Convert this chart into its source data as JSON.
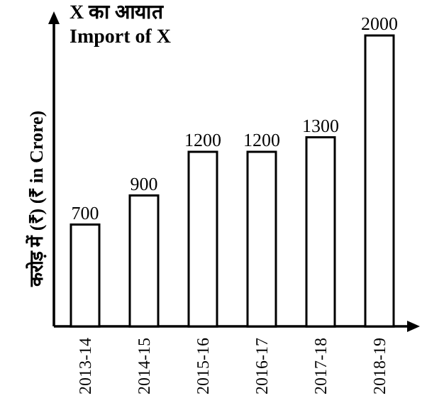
{
  "chart_data": {
    "type": "bar",
    "title": "X का आयात",
    "subtitle": "Import of X",
    "ylabel": "करोड़ में (₹)  (₹ in Crore)",
    "categories": [
      "2013-14",
      "2014-15",
      "2015-16",
      "2016-17",
      "2017-18",
      "2018-19"
    ],
    "values": [
      700,
      900,
      1200,
      1200,
      1300,
      2000
    ],
    "color": "#ffffff",
    "data_labels": true
  }
}
